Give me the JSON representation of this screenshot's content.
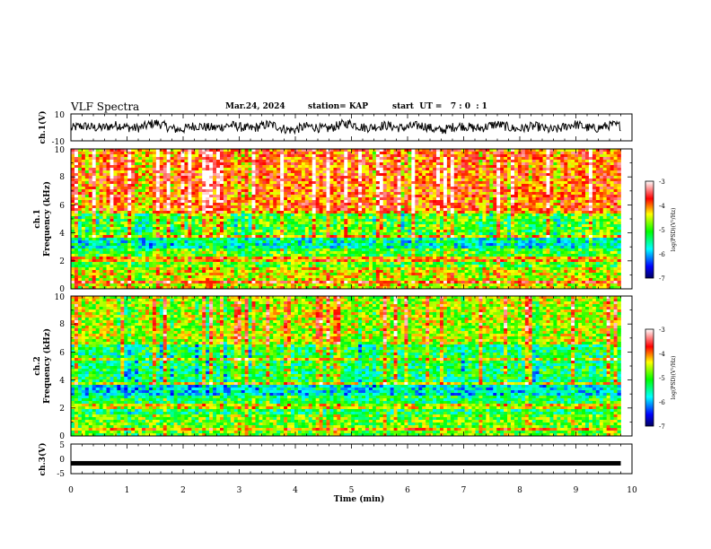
{
  "header": {
    "title": "VLF Spectra",
    "date": "Mar.24, 2024",
    "station": "station= KAP",
    "start_ut": "start  UT =   7 : 0  : 1"
  },
  "chart_data": [
    {
      "type": "line",
      "name": "ch1-waveform",
      "ylabel": "ch.1(V)",
      "ylim": [
        -10,
        10
      ],
      "yticks": [
        "10",
        "-10"
      ],
      "xlim": [
        0,
        10
      ],
      "style": "dense noisy trace centred near 0, amplitude roughly -5 to +5 V, data ends near 9.8 min",
      "x": [
        0,
        0.5,
        1,
        1.5,
        2,
        2.5,
        3,
        3.5,
        4,
        4.5,
        5,
        5.5,
        6,
        6.5,
        7,
        7.5,
        8,
        8.5,
        9,
        9.5,
        9.8
      ],
      "y": [
        -1,
        1,
        0,
        2,
        -1,
        1,
        0,
        1,
        -1,
        0,
        2,
        0,
        1,
        -1,
        0,
        1,
        0,
        -1,
        1,
        0,
        1
      ]
    },
    {
      "type": "heatmap",
      "name": "ch1-spectrogram",
      "ylabel": "ch.1\nFrequency (kHz)",
      "ylim": [
        0,
        10
      ],
      "yticks": [
        "0",
        "2",
        "4",
        "6",
        "8",
        "10"
      ],
      "xlim": [
        0,
        10
      ],
      "data_end_min": 9.8,
      "colorbar": {
        "label": "log(PSD)(V²/Hz)",
        "range": [
          -7,
          -3
        ],
        "ticks": [
          "-3",
          "-4",
          "-5",
          "-6",
          "-7"
        ],
        "colors": [
          "#000080",
          "#0000ff",
          "#00ffff",
          "#00ff00",
          "#ffff00",
          "#ff0000",
          "#ffffff"
        ]
      },
      "bands_log_psd": [
        {
          "freq_khz": [
            0,
            1.5
          ],
          "log_psd": -4.5
        },
        {
          "freq_khz": [
            1.5,
            2.8
          ],
          "log_psd": -5.0
        },
        {
          "freq_khz": [
            2.8,
            3.6
          ],
          "log_psd": -5.6
        },
        {
          "freq_khz": [
            3.6,
            5.5
          ],
          "log_psd": -5.0
        },
        {
          "freq_khz": [
            5.5,
            10
          ],
          "log_psd": -3.9
        }
      ]
    },
    {
      "type": "heatmap",
      "name": "ch2-spectrogram",
      "ylabel": "ch.2\nFrequency (kHz)",
      "ylim": [
        0,
        10
      ],
      "yticks": [
        "0",
        "2",
        "4",
        "6",
        "8",
        "10"
      ],
      "xlim": [
        0,
        10
      ],
      "data_end_min": 9.8,
      "colorbar": {
        "label": "log(PSD)(V²/Hz)",
        "range": [
          -7,
          -3
        ],
        "ticks": [
          "-3",
          "-4",
          "-5",
          "-6",
          "-7"
        ],
        "colors": [
          "#000080",
          "#0000ff",
          "#00ffff",
          "#00ff00",
          "#ffff00",
          "#ff0000",
          "#ffffff"
        ]
      },
      "bands_log_psd": [
        {
          "freq_khz": [
            0,
            1.5
          ],
          "log_psd": -4.9
        },
        {
          "freq_khz": [
            1.5,
            2.8
          ],
          "log_psd": -5.3
        },
        {
          "freq_khz": [
            2.8,
            3.6
          ],
          "log_psd": -5.8
        },
        {
          "freq_khz": [
            3.6,
            6.5
          ],
          "log_psd": -5.3
        },
        {
          "freq_khz": [
            6.5,
            10
          ],
          "log_psd": -4.6
        }
      ]
    },
    {
      "type": "line",
      "name": "ch3-waveform",
      "ylabel": "ch.3(V)",
      "ylim": [
        -5,
        5
      ],
      "yticks": [
        "5",
        "0",
        "-5"
      ],
      "xlim": [
        0,
        10
      ],
      "style": "thick flat black band near -1.5 V",
      "x": [
        0,
        9.8
      ],
      "y": [
        -1.5,
        -1.5
      ]
    }
  ],
  "xaxis": {
    "label": "Time (min)",
    "ticks": [
      "0",
      "1",
      "2",
      "3",
      "4",
      "5",
      "6",
      "7",
      "8",
      "9",
      "10"
    ]
  }
}
